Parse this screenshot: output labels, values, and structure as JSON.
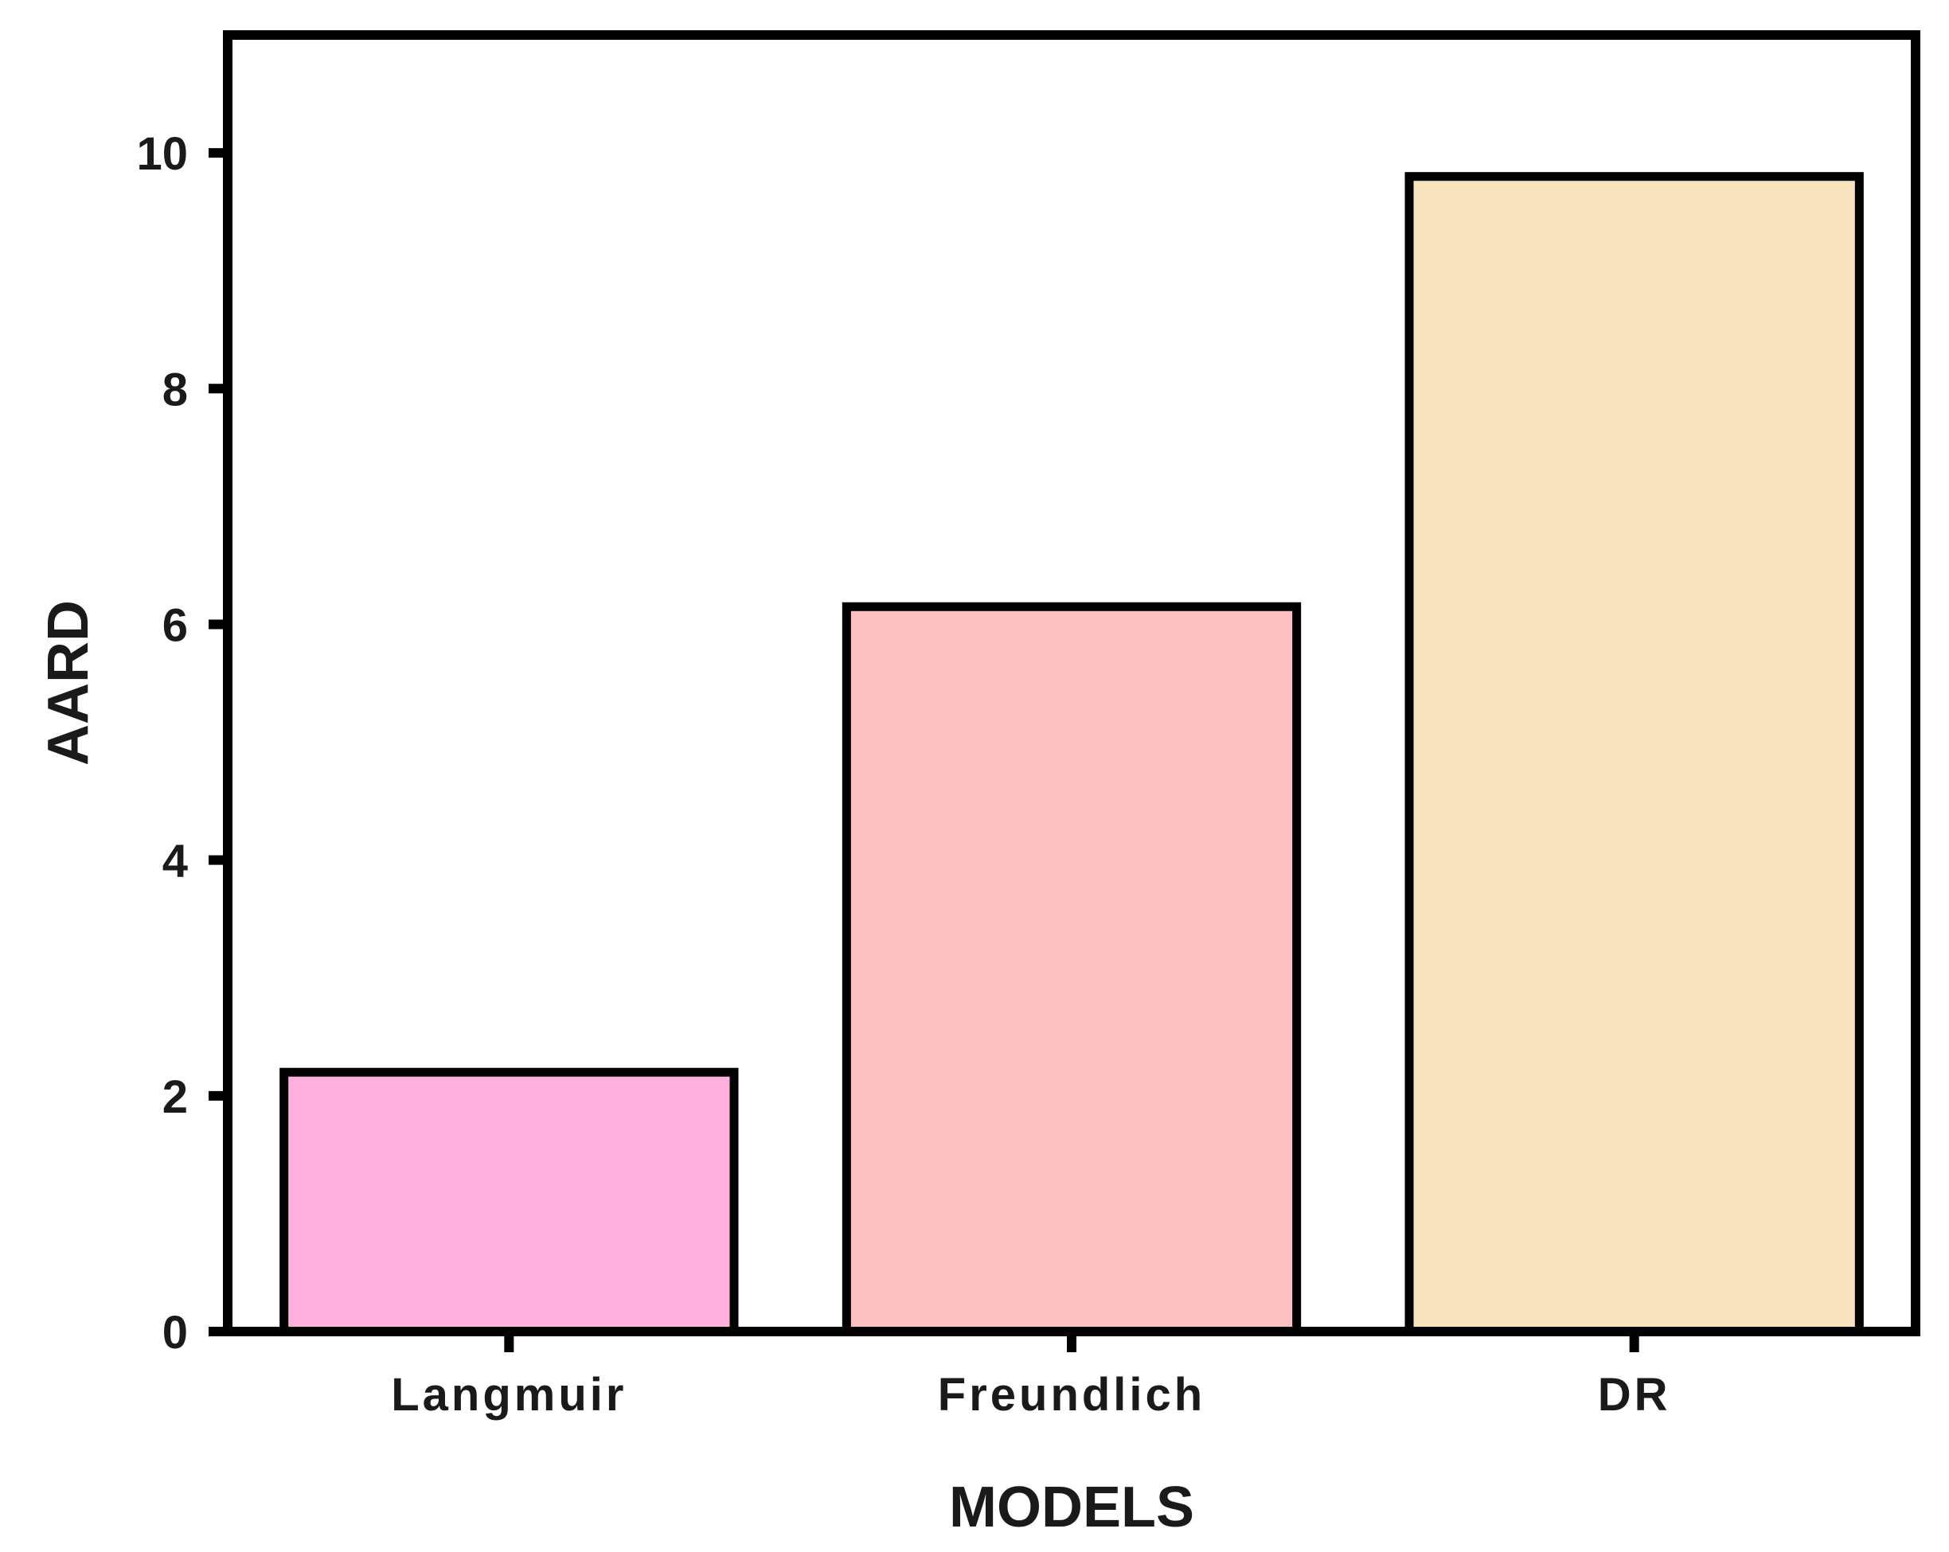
{
  "chart_data": {
    "type": "bar",
    "categories": [
      "Langmuir",
      "Freundlich",
      "DR"
    ],
    "values": [
      2.2,
      6.15,
      9.8
    ],
    "colors": [
      "#fdb0dc",
      "#fbc0c0",
      "#f7e4bf"
    ],
    "xlabel": "MODELS",
    "ylabel": "AARD",
    "ylim": [
      0,
      11
    ],
    "yticks": [
      "0",
      "2",
      "4",
      "6",
      "8",
      "10"
    ],
    "grid": false,
    "legend": "none"
  }
}
